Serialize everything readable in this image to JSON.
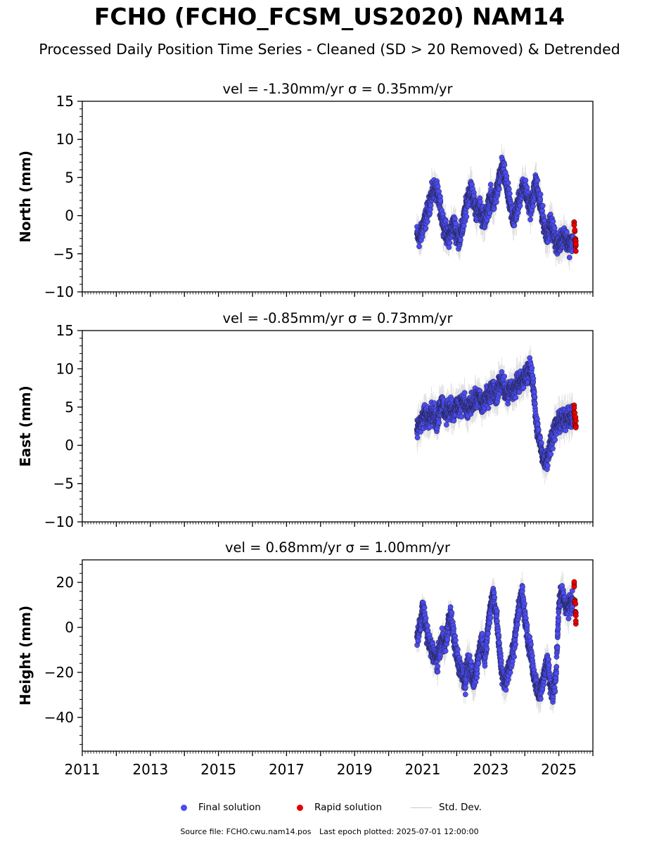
{
  "title": "FCHO (FCHO_FCSM_US2020) NAM14",
  "subtitle": "Processed Daily Position Time Series - Cleaned (SD > 20 Removed) & Detrended",
  "legend": {
    "final": "Final solution",
    "rapid": "Rapid solution",
    "std": "Std. Dev."
  },
  "footer": {
    "source": "Source file: FCHO.cwu.nam14.pos",
    "last_epoch": "Last epoch plotted: 2025-07-01 12:00:00"
  },
  "colors": {
    "final": "#4b4cf2",
    "rapid": "#e60000",
    "std": "#c9c9c9"
  },
  "chart_data": [
    {
      "type": "scatter",
      "title": "vel = -1.30mm/yr   σ = 0.35mm/yr",
      "ylabel": "North (mm)",
      "xlim": [
        2011,
        2026
      ],
      "ylim": [
        -10,
        15
      ],
      "yticks": [
        -10,
        -5,
        0,
        5,
        10,
        15
      ],
      "ytick_labels": [
        "−10",
        "−5",
        "0",
        "5",
        "10",
        "15"
      ],
      "xticks": [
        2011,
        2013,
        2015,
        2017,
        2019,
        2021,
        2023,
        2025
      ],
      "series": [
        {
          "name": "Final solution",
          "x": [
            2020.83,
            2020.92,
            2021.0,
            2021.08,
            2021.17,
            2021.25,
            2021.33,
            2021.42,
            2021.5,
            2021.58,
            2021.67,
            2021.75,
            2021.83,
            2021.92,
            2022.0,
            2022.08,
            2022.17,
            2022.25,
            2022.33,
            2022.42,
            2022.5,
            2022.58,
            2022.67,
            2022.75,
            2022.83,
            2022.92,
            2023.0,
            2023.08,
            2023.17,
            2023.25,
            2023.33,
            2023.42,
            2023.5,
            2023.58,
            2023.67,
            2023.75,
            2023.83,
            2023.92,
            2024.0,
            2024.08,
            2024.17,
            2024.25,
            2024.33,
            2024.42,
            2024.5,
            2024.58,
            2024.67,
            2024.75,
            2024.83,
            2024.92,
            2025.0,
            2025.08,
            2025.17,
            2025.25,
            2025.33,
            2025.42
          ],
          "y": [
            -2.5,
            -3.0,
            -1.5,
            -0.5,
            1.0,
            2.5,
            3.5,
            3.0,
            1.5,
            -0.5,
            -2.0,
            -3.0,
            -2.0,
            -1.0,
            -2.5,
            -3.0,
            -1.5,
            0.5,
            2.5,
            3.5,
            2.0,
            0.5,
            1.0,
            0.0,
            -0.5,
            1.0,
            2.5,
            1.5,
            3.0,
            4.5,
            6.5,
            5.0,
            3.0,
            1.0,
            -0.5,
            0.5,
            2.0,
            3.5,
            4.0,
            2.0,
            1.0,
            2.5,
            4.5,
            2.0,
            0.5,
            -1.5,
            -2.5,
            -1.0,
            -2.0,
            -3.5,
            -4.0,
            -3.0,
            -2.5,
            -3.5,
            -4.0,
            -3.0
          ]
        },
        {
          "name": "Rapid solution",
          "x": [
            2025.45,
            2025.47,
            2025.49,
            2025.5
          ],
          "y": [
            -1.5,
            -2.5,
            -3.5,
            -4.0
          ]
        }
      ]
    },
    {
      "type": "scatter",
      "title": "vel = -0.85mm/yr   σ = 0.73mm/yr",
      "ylabel": "East (mm)",
      "xlim": [
        2011,
        2026
      ],
      "ylim": [
        -10,
        15
      ],
      "yticks": [
        -10,
        -5,
        0,
        5,
        10,
        15
      ],
      "ytick_labels": [
        "−10",
        "−5",
        "0",
        "5",
        "10",
        "15"
      ],
      "xticks": [
        2011,
        2013,
        2015,
        2017,
        2019,
        2021,
        2023,
        2025
      ],
      "series": [
        {
          "name": "Final solution",
          "x": [
            2020.83,
            2020.92,
            2021.0,
            2021.08,
            2021.17,
            2021.25,
            2021.33,
            2021.42,
            2021.5,
            2021.58,
            2021.67,
            2021.75,
            2021.83,
            2021.92,
            2022.0,
            2022.08,
            2022.17,
            2022.25,
            2022.33,
            2022.42,
            2022.5,
            2022.58,
            2022.67,
            2022.75,
            2022.83,
            2022.92,
            2023.0,
            2023.08,
            2023.17,
            2023.25,
            2023.33,
            2023.42,
            2023.5,
            2023.58,
            2023.67,
            2023.75,
            2023.83,
            2023.92,
            2024.0,
            2024.08,
            2024.17,
            2024.25,
            2024.33,
            2024.42,
            2024.5,
            2024.58,
            2024.67,
            2024.75,
            2024.83,
            2024.92,
            2025.0,
            2025.08,
            2025.17,
            2025.25,
            2025.33,
            2025.42
          ],
          "y": [
            2.0,
            3.0,
            3.5,
            4.0,
            3.5,
            4.5,
            4.0,
            3.0,
            5.0,
            5.5,
            4.0,
            4.5,
            5.0,
            4.0,
            5.5,
            4.5,
            6.0,
            5.0,
            4.5,
            5.5,
            5.5,
            6.0,
            6.5,
            5.0,
            6.0,
            6.5,
            7.0,
            7.5,
            6.5,
            8.0,
            8.5,
            7.0,
            6.5,
            7.5,
            7.0,
            8.0,
            8.5,
            8.0,
            9.0,
            9.5,
            10.0,
            8.0,
            3.0,
            1.0,
            -1.0,
            -2.0,
            -1.5,
            0.0,
            1.5,
            2.5,
            3.0,
            3.5,
            3.0,
            4.0,
            3.5,
            3.5
          ]
        },
        {
          "name": "Rapid solution",
          "x": [
            2025.45,
            2025.47,
            2025.49,
            2025.5
          ],
          "y": [
            4.5,
            3.5,
            3.0,
            2.5
          ]
        }
      ]
    },
    {
      "type": "scatter",
      "title": "vel = 0.68mm/yr   σ = 1.00mm/yr",
      "ylabel": "Height (mm)",
      "xlim": [
        2011,
        2026
      ],
      "ylim": [
        -55,
        30
      ],
      "yticks": [
        -40,
        -20,
        0,
        20
      ],
      "ytick_labels": [
        "−40",
        "−20",
        "0",
        "20"
      ],
      "xticks": [
        2011,
        2013,
        2015,
        2017,
        2019,
        2021,
        2023,
        2025
      ],
      "xtick_labels": [
        "2011",
        "2013",
        "2015",
        "2017",
        "2019",
        "2021",
        "2023",
        "2025"
      ],
      "series": [
        {
          "name": "Final solution",
          "x": [
            2020.83,
            2020.92,
            2021.0,
            2021.08,
            2021.17,
            2021.25,
            2021.33,
            2021.42,
            2021.5,
            2021.58,
            2021.67,
            2021.75,
            2021.83,
            2021.92,
            2022.0,
            2022.08,
            2022.17,
            2022.25,
            2022.33,
            2022.42,
            2022.5,
            2022.58,
            2022.67,
            2022.75,
            2022.83,
            2022.92,
            2023.0,
            2023.08,
            2023.17,
            2023.25,
            2023.33,
            2023.42,
            2023.5,
            2023.58,
            2023.67,
            2023.75,
            2023.83,
            2023.92,
            2024.0,
            2024.08,
            2024.17,
            2024.25,
            2024.33,
            2024.42,
            2024.5,
            2024.58,
            2024.67,
            2024.75,
            2024.83,
            2024.92,
            2025.0,
            2025.08,
            2025.17,
            2025.25,
            2025.33,
            2025.42
          ],
          "y": [
            -5.0,
            0.0,
            8.0,
            2.0,
            -6.0,
            -10.0,
            -12.0,
            -15.0,
            -10.0,
            -5.0,
            -8.0,
            2.0,
            5.0,
            -5.0,
            -12.0,
            -18.0,
            -20.0,
            -25.0,
            -15.0,
            -20.0,
            -25.0,
            -18.0,
            -10.0,
            -5.0,
            -15.0,
            0.0,
            10.0,
            15.0,
            5.0,
            -10.0,
            -20.0,
            -25.0,
            -20.0,
            -15.0,
            -10.0,
            0.0,
            10.0,
            15.0,
            5.0,
            -5.0,
            -10.0,
            -20.0,
            -25.0,
            -30.0,
            -25.0,
            -20.0,
            -15.0,
            -25.0,
            -30.0,
            -20.0,
            10.0,
            15.0,
            12.0,
            8.0,
            10.0,
            12.0
          ]
        },
        {
          "name": "Rapid solution",
          "x": [
            2025.45,
            2025.47,
            2025.49,
            2025.5
          ],
          "y": [
            18.0,
            12.0,
            8.0,
            4.0
          ]
        }
      ]
    }
  ]
}
